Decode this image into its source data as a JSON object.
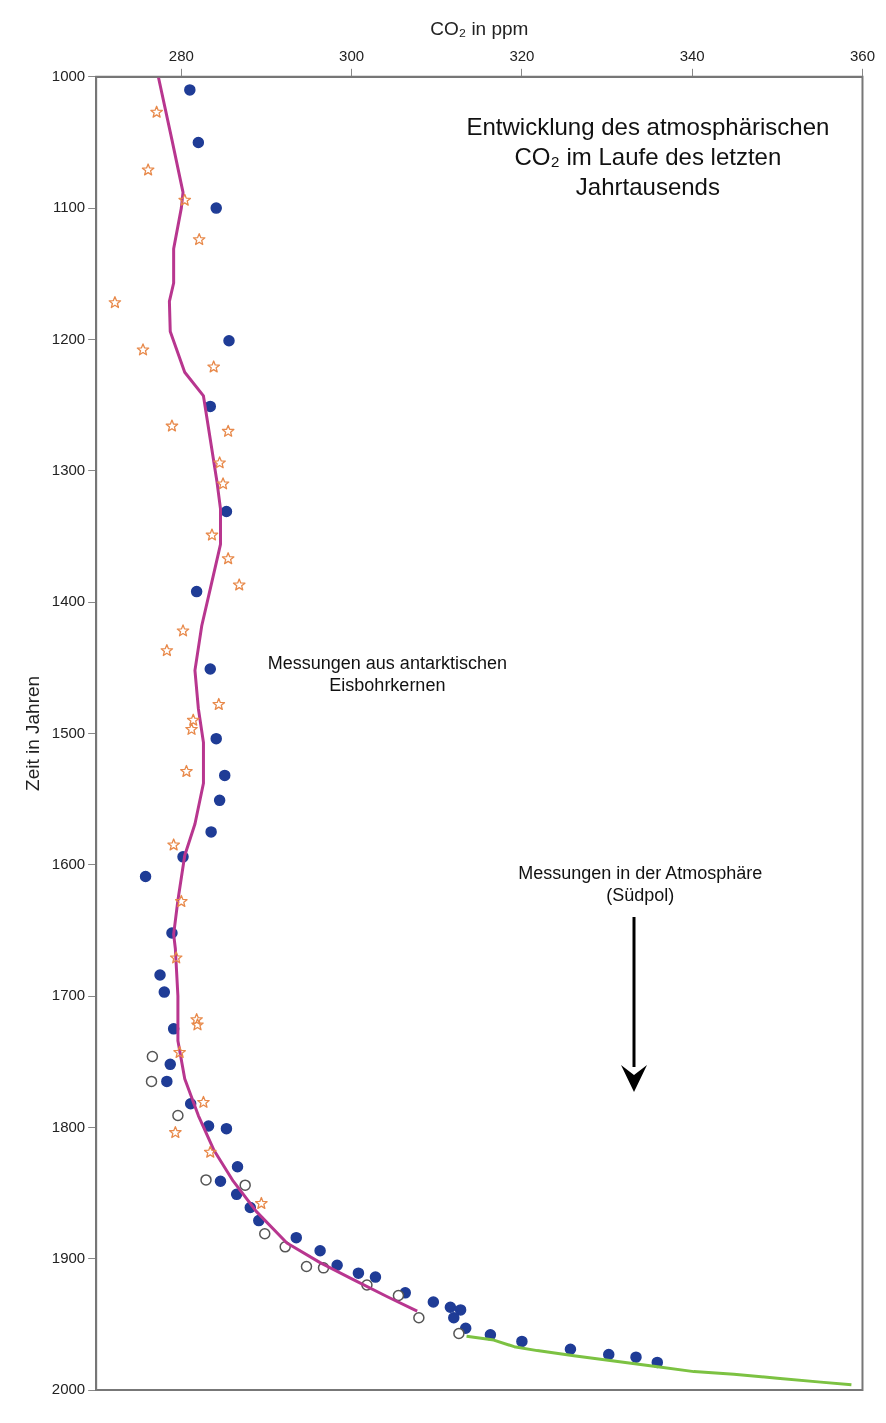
{
  "chart_data": {
    "type": "scatter",
    "title": "Entwicklung des atmosphärischen CO₂ im Laufe des letzten Jahrtausends",
    "xlabel": "CO₂ in ppm",
    "ylabel": "Zeit in Jahren",
    "annotations": [
      "Messungen aus antarktischen Eisbohrkernen",
      "Messungen in der Atmosphäre (Südpol)"
    ],
    "xlim": [
      270,
      360
    ],
    "xticks": [
      280,
      300,
      320,
      340,
      360
    ],
    "ylim": [
      2000,
      1000
    ],
    "yticks": [
      1000,
      1100,
      1200,
      1300,
      1400,
      1500,
      1600,
      1700,
      1800,
      1900,
      2000
    ],
    "grid": false,
    "legend": false,
    "series": [
      {
        "type": "line",
        "color": "#b8368f",
        "marker": "none",
        "line_style": "solid",
        "x": [
          277.3,
          278.9,
          280.2,
          280.0,
          279.1,
          279.1,
          278.6,
          278.7,
          280.4,
          282.6,
          284.2,
          284.6,
          284.6,
          283.4,
          282.4,
          281.6,
          282.0,
          282.6,
          282.6,
          281.6,
          280.4,
          279.6,
          279.1,
          279.3,
          279.6,
          279.6,
          280.4,
          282.0,
          283.8,
          286.1,
          288.8,
          292.4,
          296.3,
          300.2,
          304.2,
          307.7
        ],
        "values": [
          1000,
          1048,
          1088,
          1100,
          1131,
          1157,
          1171,
          1194,
          1225,
          1243,
          1309,
          1329,
          1356,
          1390,
          1418,
          1452,
          1481,
          1507,
          1538,
          1569,
          1593,
          1627,
          1653,
          1664,
          1700,
          1734,
          1763,
          1791,
          1817,
          1841,
          1864,
          1888,
          1903,
          1916,
          1929,
          1940
        ]
      },
      {
        "type": "line",
        "color": "#7cc242",
        "marker": "none",
        "line_style": "solid",
        "x": [
          313.5,
          316.7,
          319.1,
          321.8,
          326.1,
          330.8,
          335.5,
          340.2,
          344.9,
          350.0,
          355.1,
          358.7
        ],
        "values": [
          1959,
          1962,
          1967,
          1970,
          1974,
          1978,
          1982,
          1986,
          1988,
          1991,
          1994,
          1996
        ]
      },
      {
        "type": "scatter",
        "color": "#e8894a",
        "marker": "star",
        "x": [
          277.1,
          276.1,
          280.4,
          282.1,
          272.2,
          275.5,
          283.8,
          278.9,
          285.5,
          284.5,
          284.9,
          283.6,
          285.5,
          286.8,
          280.2,
          278.3,
          284.4,
          281.4,
          281.2,
          280.6,
          279.1,
          280.0,
          279.4,
          281.8,
          281.9,
          279.8,
          282.6,
          279.3,
          283.4,
          289.4
        ],
        "values": [
          1027,
          1071,
          1094,
          1124,
          1172,
          1208,
          1221,
          1266,
          1270,
          1294,
          1310,
          1349,
          1367,
          1387,
          1422,
          1437,
          1478,
          1490,
          1497,
          1529,
          1585,
          1628,
          1671,
          1718,
          1722,
          1743,
          1781,
          1804,
          1819,
          1858
        ]
      },
      {
        "type": "scatter",
        "color": "#555555",
        "marker": "circle",
        "x": [
          276.6,
          276.5,
          279.6,
          282.9,
          287.5,
          289.8,
          292.2,
          294.7,
          296.7,
          301.8,
          305.5,
          307.9,
          312.6
        ],
        "values": [
          1746,
          1765,
          1791,
          1840,
          1844,
          1881,
          1891,
          1906,
          1907,
          1920,
          1928,
          1945,
          1957
        ]
      },
      {
        "type": "scatter",
        "color": "#1f3c96",
        "marker": "circle",
        "x": [
          281.0,
          282.0,
          284.1,
          285.6,
          283.4,
          285.3,
          281.8,
          283.4,
          284.1,
          285.1,
          284.5,
          283.5,
          280.2,
          275.8,
          278.9,
          277.5,
          278.0,
          279.1,
          278.7,
          278.3,
          281.1,
          283.2,
          285.3,
          286.6,
          284.6,
          286.5,
          287.3,
          288.1,
          289.1,
          293.5,
          296.3,
          298.3,
          300.8,
          302.8,
          306.3,
          309.6,
          311.6,
          312.8,
          312.0,
          313.4,
          316.3,
          319.8,
          320.0,
          325.7,
          330.2,
          333.4,
          335.9
        ],
        "values": [
          1010,
          1050,
          1100,
          1201,
          1251,
          1331,
          1392,
          1451,
          1504,
          1532,
          1551,
          1575,
          1594,
          1609,
          1652,
          1684,
          1697,
          1725,
          1752,
          1765,
          1782,
          1799,
          1801,
          1830,
          1841,
          1851,
          null,
          1861,
          1871,
          1884,
          1894,
          1905,
          1911,
          1914,
          1926,
          1933,
          1937,
          1939,
          1945,
          1953,
          1958,
          null,
          1963,
          1969,
          1973,
          1975,
          1979
        ]
      }
    ]
  }
}
